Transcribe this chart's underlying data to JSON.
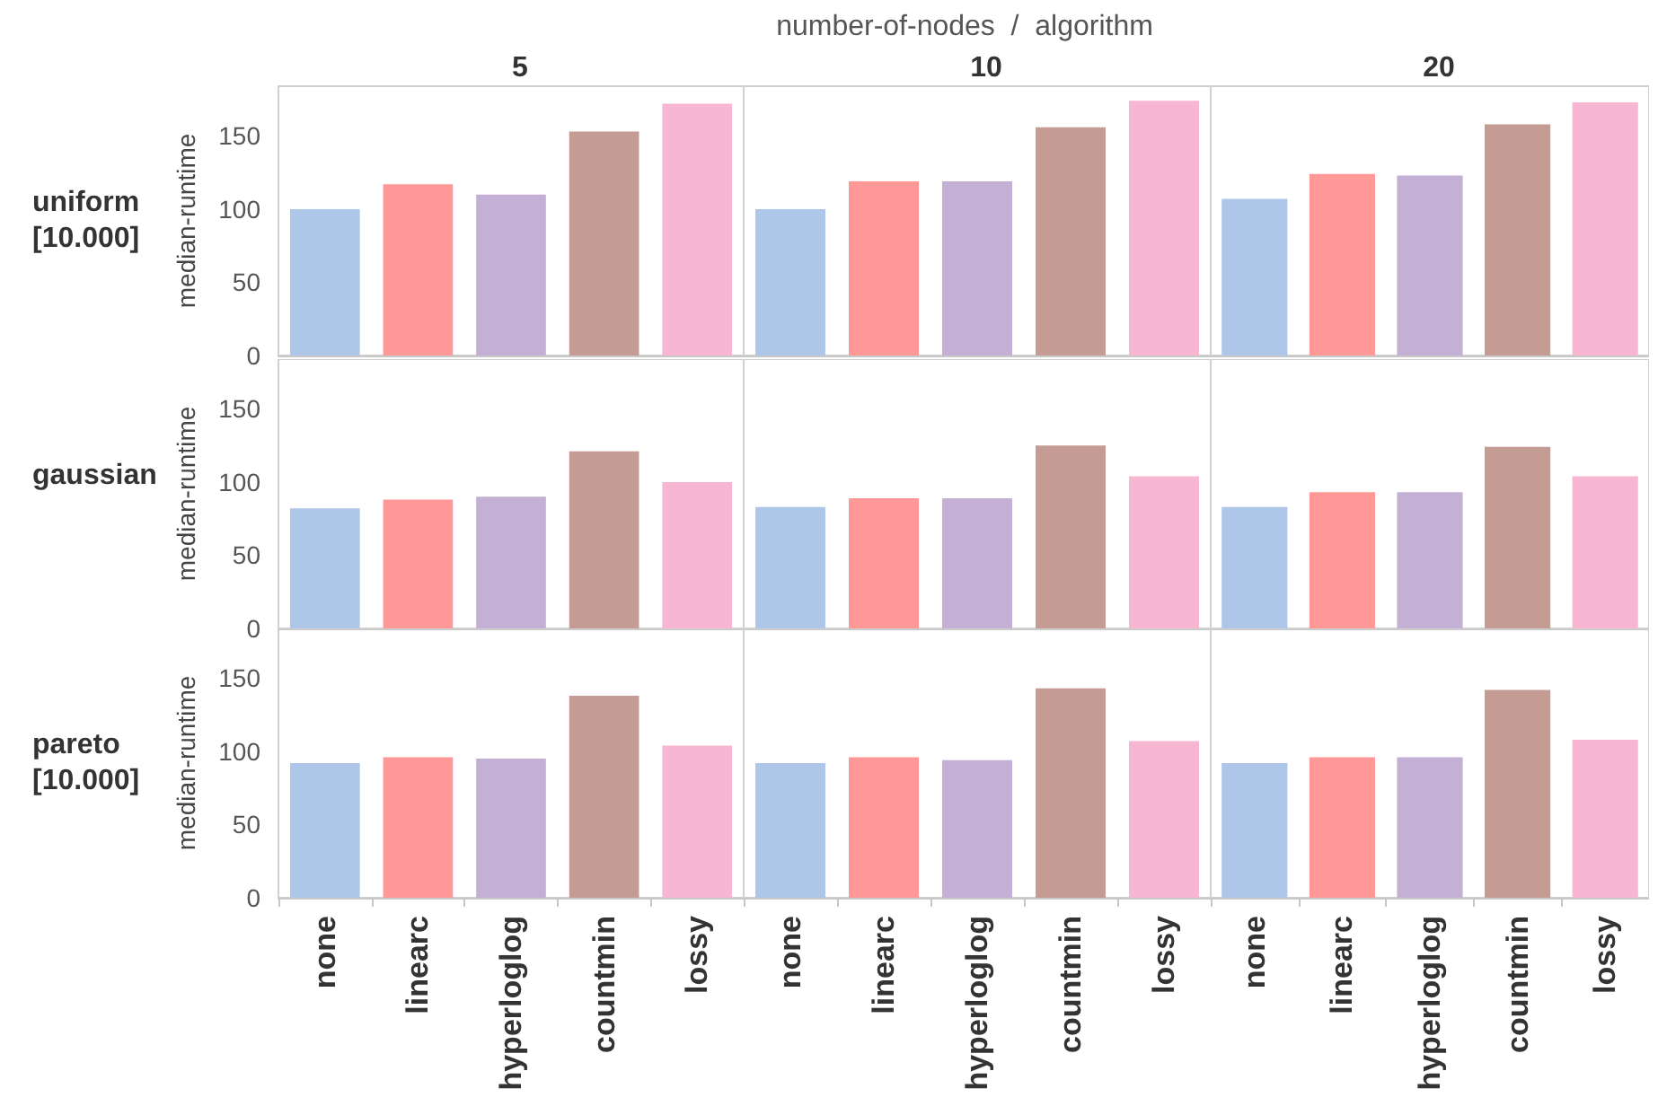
{
  "chart_data": [
    {
      "type": "bar",
      "title": "5",
      "ylabel": "median-runtime",
      "annotations": [
        "uniform [10.000]"
      ],
      "categories": [
        "none",
        "linearc",
        "hyperloglog",
        "countmin",
        "lossy"
      ],
      "values": [
        100,
        117,
        110,
        153,
        172
      ],
      "colors": [
        "#aec7e8",
        "#ff9896",
        "#c5b0d5",
        "#c49c94",
        "#f7b6d2"
      ],
      "ylim": [
        0,
        184
      ],
      "yticks": [
        0,
        50,
        100,
        150
      ],
      "grid": false,
      "tick_labels": "y"
    },
    {
      "type": "bar",
      "title": "10",
      "subtitle": "number-of-nodes  /  algorithm",
      "categories": [
        "none",
        "linearc",
        "hyperloglog",
        "countmin",
        "lossy"
      ],
      "values": [
        100,
        119,
        119,
        156,
        174
      ],
      "colors": [
        "#aec7e8",
        "#ff9896",
        "#c5b0d5",
        "#c49c94",
        "#f7b6d2"
      ],
      "ylim": [
        0,
        184
      ],
      "yticks": [
        0,
        50,
        100,
        150
      ],
      "grid": false,
      "tick_labels": false
    },
    {
      "type": "bar",
      "title": "20",
      "categories": [
        "none",
        "linearc",
        "hyperloglog",
        "countmin",
        "lossy"
      ],
      "values": [
        107,
        124,
        123,
        158,
        173
      ],
      "colors": [
        "#aec7e8",
        "#ff9896",
        "#c5b0d5",
        "#c49c94",
        "#f7b6d2"
      ],
      "ylim": [
        0,
        184
      ],
      "yticks": [
        0,
        50,
        100,
        150
      ],
      "grid": false,
      "tick_labels": false
    },
    {
      "type": "bar",
      "ylabel": "median-runtime",
      "annotations": [
        "gaussian"
      ],
      "categories": [
        "none",
        "linearc",
        "hyperloglog",
        "countmin",
        "lossy"
      ],
      "values": [
        82,
        88,
        90,
        121,
        100
      ],
      "colors": [
        "#aec7e8",
        "#ff9896",
        "#c5b0d5",
        "#c49c94",
        "#f7b6d2"
      ],
      "ylim": [
        0,
        184
      ],
      "yticks": [
        0,
        50,
        100,
        150
      ],
      "grid": false,
      "tick_labels": "y"
    },
    {
      "type": "bar",
      "categories": [
        "none",
        "linearc",
        "hyperloglog",
        "countmin",
        "lossy"
      ],
      "values": [
        83,
        89,
        89,
        125,
        104
      ],
      "colors": [
        "#aec7e8",
        "#ff9896",
        "#c5b0d5",
        "#c49c94",
        "#f7b6d2"
      ],
      "ylim": [
        0,
        184
      ],
      "yticks": [
        0,
        50,
        100,
        150
      ],
      "grid": false,
      "tick_labels": false
    },
    {
      "type": "bar",
      "categories": [
        "none",
        "linearc",
        "hyperloglog",
        "countmin",
        "lossy"
      ],
      "values": [
        83,
        93,
        93,
        124,
        104
      ],
      "colors": [
        "#aec7e8",
        "#ff9896",
        "#c5b0d5",
        "#c49c94",
        "#f7b6d2"
      ],
      "ylim": [
        0,
        184
      ],
      "yticks": [
        0,
        50,
        100,
        150
      ],
      "grid": false,
      "tick_labels": false
    },
    {
      "type": "bar",
      "ylabel": "median-runtime",
      "annotations": [
        "pareto [10.000]"
      ],
      "categories": [
        "none",
        "linearc",
        "hyperloglog",
        "countmin",
        "lossy"
      ],
      "values": [
        92,
        96,
        95,
        138,
        104
      ],
      "colors": [
        "#aec7e8",
        "#ff9896",
        "#c5b0d5",
        "#c49c94",
        "#f7b6d2"
      ],
      "ylim": [
        0,
        184
      ],
      "yticks": [
        0,
        50,
        100,
        150
      ],
      "grid": false
    },
    {
      "type": "bar",
      "categories": [
        "none",
        "linearc",
        "hyperloglog",
        "countmin",
        "lossy"
      ],
      "values": [
        92,
        96,
        94,
        143,
        107
      ],
      "colors": [
        "#aec7e8",
        "#ff9896",
        "#c5b0d5",
        "#c49c94",
        "#f7b6d2"
      ],
      "ylim": [
        0,
        184
      ],
      "yticks": [
        0,
        50,
        100,
        150
      ],
      "grid": false,
      "tick_labels": "x"
    },
    {
      "type": "bar",
      "categories": [
        "none",
        "linearc",
        "hyperloglog",
        "countmin",
        "lossy"
      ],
      "values": [
        92,
        96,
        96,
        142,
        108
      ],
      "colors": [
        "#aec7e8",
        "#ff9896",
        "#c5b0d5",
        "#c49c94",
        "#f7b6d2"
      ],
      "ylim": [
        0,
        184
      ],
      "yticks": [
        0,
        50,
        100,
        150
      ],
      "grid": false,
      "tick_labels": "x"
    }
  ]
}
